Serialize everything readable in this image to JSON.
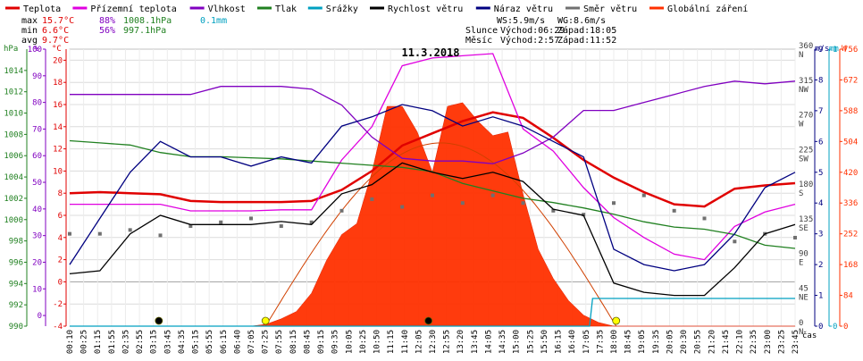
{
  "chart_data": {
    "type": "line",
    "title": "11.3.2018",
    "legend": [
      {
        "label": "Teplota",
        "color": "#e00000"
      },
      {
        "label": "Přízemní teplota",
        "color": "#e000e0"
      },
      {
        "label": "Vlhkost",
        "color": "#8000c0"
      },
      {
        "label": "Tlak",
        "color": "#208020"
      },
      {
        "label": "Srážky",
        "color": "#00a0c0"
      },
      {
        "label": "Rychlost větru",
        "color": "#000000"
      },
      {
        "label": "Náraz větru",
        "color": "#000080"
      },
      {
        "label": "Směr větru",
        "color": "#707070"
      },
      {
        "label": "Globální záření",
        "color": "#ff3000"
      }
    ],
    "stats": {
      "max_label": "max",
      "max_temp": "15.7°C",
      "max_hum": "88%",
      "max_press": "1008.1hPa",
      "max_rain": "0.1mm",
      "min_label": "min",
      "min_temp": "6.6°C",
      "min_hum": "56%",
      "min_press": "997.1hPa",
      "avg_label": "avg",
      "avg_temp": "9.7°C"
    },
    "info": {
      "ws": "WS:5.9m/s",
      "wg": "WG:8.6m/s",
      "sun_label": "Slunce",
      "sun_rise": "Východ:06:29",
      "sun_set": "Západ:18:05",
      "moon_label": "Měsíc",
      "moon_rise": "Východ:2:57",
      "moon_set": "Západ:11:52"
    },
    "axis_units": {
      "hpa": "hPa",
      "pct": "%",
      "degc": "°C",
      "ms": "m/s",
      "mm": "mm",
      "w": "W",
      "xlabel": "čas"
    },
    "axes": {
      "hpa": {
        "ticks": [
          990,
          992,
          994,
          996,
          998,
          1000,
          1002,
          1004,
          1006,
          1008,
          1010,
          1012,
          1014
        ],
        "range": [
          990,
          1016
        ]
      },
      "pct": {
        "ticks": [
          0,
          10,
          20,
          30,
          40,
          50,
          60,
          70,
          80,
          90,
          100
        ],
        "range": [
          -4,
          100
        ]
      },
      "degc": {
        "ticks": [
          -4,
          -2,
          0,
          2,
          4,
          6,
          8,
          10,
          12,
          14,
          16,
          18,
          20
        ],
        "range": [
          -4,
          21
        ]
      },
      "dir": {
        "labels": [
          "0 N",
          "45 NE",
          "90 E",
          "135 SE",
          "180 S",
          "225 SW",
          "270 W",
          "315 NW",
          "360 N"
        ]
      },
      "ms": {
        "ticks": [
          0,
          1,
          2,
          3,
          4,
          5,
          6,
          7,
          8,
          9
        ],
        "range": [
          0,
          9
        ]
      },
      "mm": {
        "ticks": [
          0,
          1
        ],
        "range": [
          0,
          1
        ]
      },
      "w": {
        "ticks": [
          0,
          84,
          168,
          252,
          336,
          420,
          504,
          588,
          672,
          756
        ],
        "range": [
          0,
          756
        ]
      }
    },
    "x_ticks": [
      "00:10",
      "00:25",
      "01:15",
      "01:55",
      "02:35",
      "02:55",
      "03:15",
      "03:45",
      "04:35",
      "05:15",
      "05:55",
      "06:15",
      "06:40",
      "07:05",
      "07:25",
      "07:55",
      "08:15",
      "08:45",
      "09:15",
      "09:35",
      "10:05",
      "10:25",
      "10:50",
      "11:15",
      "11:40",
      "12:05",
      "12:30",
      "12:55",
      "13:20",
      "13:45",
      "14:05",
      "14:35",
      "15:00",
      "15:25",
      "15:50",
      "16:15",
      "16:40",
      "17:05",
      "17:35",
      "18:00",
      "18:45",
      "19:05",
      "19:35",
      "20:05",
      "20:30",
      "20:55",
      "21:20",
      "21:45",
      "22:10",
      "22:35",
      "23:00",
      "23:25",
      "23:45"
    ],
    "series": [
      {
        "name": "Teplota",
        "unit": "°C",
        "x_hours": [
          0,
          1,
          2,
          3,
          4,
          5,
          6,
          7,
          8,
          9,
          10,
          11,
          12,
          13,
          14,
          15,
          16,
          17,
          18,
          19,
          20,
          21,
          22,
          23,
          24
        ],
        "values": [
          8.0,
          8.1,
          8.0,
          7.9,
          7.3,
          7.2,
          7.2,
          7.2,
          7.3,
          8.3,
          10.0,
          12.3,
          13.4,
          14.5,
          15.3,
          14.8,
          13.0,
          11.0,
          9.4,
          8.1,
          7.0,
          6.8,
          8.4,
          8.7,
          8.9
        ]
      },
      {
        "name": "Přízemní teplota",
        "unit": "°C",
        "x_hours": [
          0,
          1,
          2,
          3,
          4,
          5,
          6,
          7,
          8,
          9,
          10,
          11,
          12,
          13,
          14,
          15,
          16,
          17,
          18,
          19,
          20,
          21,
          22,
          23,
          24
        ],
        "values": [
          7.0,
          7.0,
          7.0,
          7.0,
          6.4,
          6.4,
          6.4,
          6.5,
          6.5,
          11.0,
          14.0,
          19.5,
          20.2,
          20.4,
          20.6,
          13.8,
          11.8,
          8.5,
          5.8,
          4.0,
          2.5,
          2.0,
          5.0,
          6.3,
          7.0
        ]
      },
      {
        "name": "Vlhkost",
        "unit": "%",
        "x_hours": [
          0,
          1,
          2,
          3,
          4,
          5,
          6,
          7,
          8,
          9,
          10,
          11,
          12,
          13,
          14,
          15,
          16,
          17,
          18,
          19,
          20,
          21,
          22,
          23,
          24
        ],
        "values": [
          83,
          83,
          83,
          83,
          83,
          86,
          86,
          86,
          85,
          79,
          67,
          59,
          58,
          58,
          57,
          61,
          67,
          77,
          77,
          80,
          83,
          86,
          88,
          87,
          88
        ]
      },
      {
        "name": "Tlak",
        "unit": "hPa",
        "x_hours": [
          0,
          1,
          2,
          3,
          4,
          5,
          6,
          7,
          8,
          9,
          10,
          11,
          12,
          13,
          14,
          15,
          16,
          17,
          18,
          19,
          20,
          21,
          22,
          23,
          24
        ],
        "values": [
          1007.4,
          1007.2,
          1007.0,
          1006.3,
          1005.9,
          1005.9,
          1005.8,
          1005.7,
          1005.5,
          1005.3,
          1005.1,
          1004.9,
          1004.5,
          1003.4,
          1002.7,
          1002.0,
          1001.6,
          1001.1,
          1000.5,
          999.8,
          999.3,
          999.1,
          998.6,
          997.6,
          997.3
        ]
      },
      {
        "name": "Rychlost větru",
        "unit": "m/s",
        "x_hours": [
          0,
          1,
          2,
          3,
          4,
          5,
          6,
          7,
          8,
          9,
          10,
          11,
          12,
          13,
          14,
          15,
          16,
          17,
          18,
          19,
          20,
          21,
          22,
          23,
          24
        ],
        "values": [
          1.7,
          1.8,
          3.0,
          3.6,
          3.3,
          3.3,
          3.3,
          3.4,
          3.3,
          4.3,
          4.6,
          5.3,
          5.0,
          4.8,
          5.0,
          4.7,
          3.8,
          3.6,
          1.4,
          1.1,
          1.0,
          1.0,
          1.9,
          3.0,
          3.3
        ]
      },
      {
        "name": "Náraz větru",
        "unit": "m/s",
        "x_hours": [
          0,
          1,
          2,
          3,
          4,
          5,
          6,
          7,
          8,
          9,
          10,
          11,
          12,
          13,
          14,
          15,
          16,
          17,
          18,
          19,
          20,
          21,
          22,
          23,
          24
        ],
        "values": [
          2.0,
          3.5,
          5.0,
          6.0,
          5.5,
          5.5,
          5.2,
          5.5,
          5.3,
          6.5,
          6.8,
          7.2,
          7.0,
          6.5,
          6.8,
          6.5,
          6.0,
          5.5,
          2.5,
          2.0,
          1.8,
          2.0,
          3.0,
          4.5,
          5.0
        ]
      },
      {
        "name": "Směr větru",
        "unit": "°",
        "x_hours": [
          0,
          1,
          2,
          3,
          4,
          5,
          6,
          7,
          8,
          9,
          10,
          11,
          12,
          13,
          14,
          15,
          16,
          17,
          18,
          19,
          20,
          21,
          22,
          23,
          24
        ],
        "values": [
          120,
          120,
          125,
          118,
          130,
          135,
          140,
          130,
          135,
          150,
          165,
          155,
          170,
          160,
          170,
          160,
          150,
          145,
          160,
          170,
          150,
          140,
          110,
          120,
          115
        ]
      },
      {
        "name": "Globální záření",
        "unit": "W",
        "x_hours": [
          0,
          6,
          6.5,
          7,
          7.5,
          8,
          8.5,
          9,
          9.5,
          10,
          10.5,
          11,
          11.5,
          12,
          12.5,
          13,
          13.5,
          14,
          14.5,
          15,
          15.5,
          16,
          16.5,
          17,
          17.5,
          18,
          24
        ],
        "values": [
          0,
          0,
          5,
          20,
          40,
          90,
          180,
          250,
          280,
          420,
          600,
          600,
          530,
          420,
          600,
          610,
          560,
          520,
          530,
          360,
          210,
          130,
          70,
          30,
          10,
          0,
          0
        ]
      },
      {
        "name": "Srážky",
        "unit": "mm",
        "x_hours": [
          0,
          17.2,
          17.3,
          24
        ],
        "values": [
          0,
          0,
          0.1,
          0.1
        ]
      }
    ],
    "xlim": [
      0,
      24
    ]
  }
}
